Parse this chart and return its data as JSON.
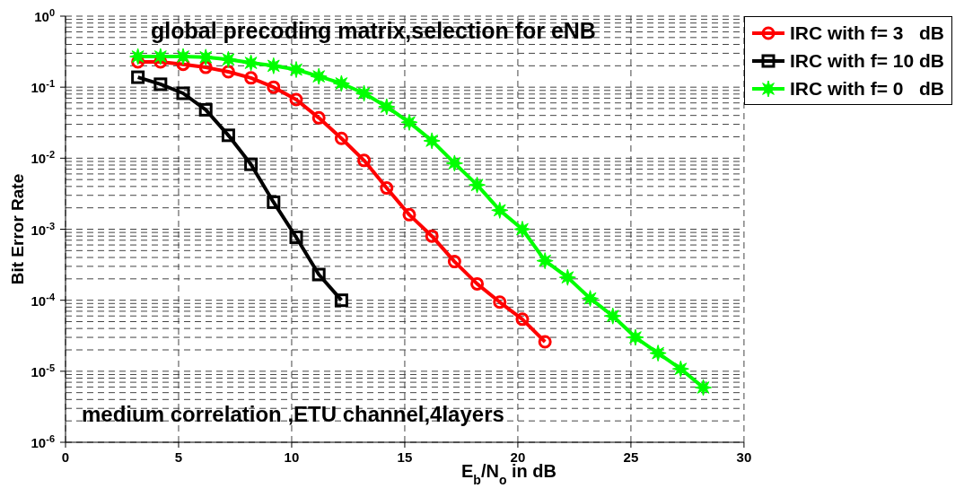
{
  "chart_data": {
    "type": "line",
    "title": "global precoding matrix,selection for eNB",
    "xlabel": "E$_{b}$/N$_{o}$ in dB",
    "ylabel": "Bit Error Rate",
    "annotations": [
      "medium correlation ,ETU channel,4layers"
    ],
    "log": "y",
    "grid": true,
    "legend": "top right",
    "line_style": "solid",
    "xlim": [
      0,
      30
    ],
    "xticks": [
      0,
      5,
      10,
      15,
      20,
      25,
      30
    ],
    "ylim": [
      1e-06,
      1
    ],
    "yticks": [
      {
        "value": 1e-06,
        "label": "10$^{-6}$"
      },
      {
        "value": 1e-05,
        "label": "10$^{-5}$"
      },
      {
        "value": 0.0001,
        "label": "10$^{-4}$"
      },
      {
        "value": 0.001,
        "label": "10$^{-3}$"
      },
      {
        "value": 0.01,
        "label": "10$^{-2}$"
      },
      {
        "value": 0.1,
        "label": "10$^{-1}$"
      },
      {
        "value": 1,
        "label": "10$^{0}$"
      }
    ],
    "series": [
      {
        "name": "IRC with f= 3   dB",
        "color": "#ff0000",
        "marker": "circle",
        "x": [
          3.2,
          4.2,
          5.2,
          6.2,
          7.2,
          8.2,
          9.2,
          10.2,
          11.2,
          12.2,
          13.2,
          14.2,
          15.2,
          16.2,
          17.2,
          18.2,
          19.2,
          20.2,
          21.2
        ],
        "values": [
          0.227,
          0.227,
          0.21,
          0.19,
          0.165,
          0.135,
          0.1,
          0.067,
          0.037,
          0.019,
          0.0093,
          0.0038,
          0.0016,
          0.0008,
          0.00035,
          0.00017,
          9.4e-05,
          5.4e-05,
          2.6e-05
        ]
      },
      {
        "name": "IRC with f= 10 dB",
        "color": "#000000",
        "marker": "square",
        "x": [
          3.2,
          4.2,
          5.2,
          6.2,
          7.2,
          8.2,
          9.2,
          10.2,
          11.2,
          12.2
        ],
        "values": [
          0.138,
          0.11,
          0.082,
          0.048,
          0.021,
          0.0082,
          0.0024,
          0.00077,
          0.00023,
          0.0001
        ]
      },
      {
        "name": "IRC with f= 0   dB",
        "color": "#00ff00",
        "marker": "star",
        "x": [
          3.2,
          4.2,
          5.2,
          6.2,
          7.2,
          8.2,
          9.2,
          10.2,
          11.2,
          12.2,
          13.2,
          14.2,
          15.2,
          16.2,
          17.2,
          18.2,
          19.2,
          20.2,
          21.2,
          22.2,
          23.2,
          24.2,
          25.2,
          26.2,
          27.2,
          28.2
        ],
        "values": [
          0.27,
          0.27,
          0.27,
          0.264,
          0.246,
          0.22,
          0.2,
          0.177,
          0.142,
          0.113,
          0.082,
          0.053,
          0.032,
          0.0176,
          0.0085,
          0.0042,
          0.00185,
          0.001,
          0.00036,
          0.00021,
          0.000106,
          6e-05,
          3e-05,
          1.8e-05,
          1.08e-05,
          5.9e-06
        ]
      }
    ]
  }
}
